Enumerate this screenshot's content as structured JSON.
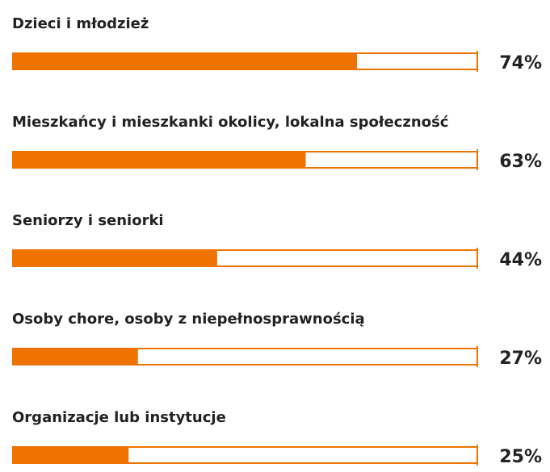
{
  "chart_data": {
    "type": "bar",
    "orientation": "horizontal",
    "categories": [
      "Dzieci i młodzież",
      "Mieszkańcy i mieszkanki okolicy, lokalna społeczność",
      "Seniorzy i seniorki",
      "Osoby chore, osoby z niepełnosprawnością",
      "Organizacje lub instytucje"
    ],
    "values": [
      74,
      63,
      44,
      27,
      25
    ],
    "value_labels": [
      "74%",
      "63%",
      "44%",
      "27%",
      "25%"
    ],
    "color": "#ef7300",
    "xlim": [
      0,
      100
    ]
  }
}
